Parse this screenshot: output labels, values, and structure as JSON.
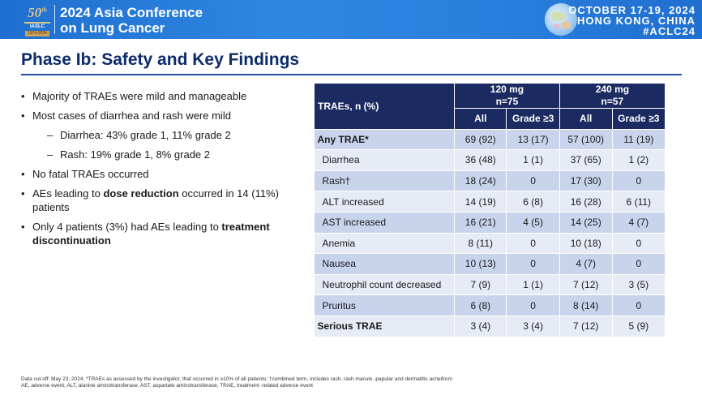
{
  "header": {
    "logo_number": "50",
    "logo_superscript": "th",
    "logo_org": "IASLC",
    "logo_years": "1974-2024",
    "conference_line1": "2024 Asia Conference",
    "conference_line2": "on Lung Cancer",
    "dates": "OCTOBER 17-19, 2024",
    "location": "HONG KONG, CHINA",
    "hashtag": "#ACLC24",
    "brand_color": "#2a7fdc"
  },
  "slide": {
    "title": "Phase Ib: Safety and Key Findings"
  },
  "bullets": {
    "b1": "Majority of TRAEs were mild and manageable",
    "b2": "Most cases of diarrhea and rash were mild",
    "b2_sub1": "Diarrhea: 43% grade 1, 11% grade 2",
    "b2_sub2": "Rash: 19% grade 1, 8% grade 2",
    "b3": "No fatal TRAEs occurred",
    "b4_pre": "AEs leading to ",
    "b4_bold": "dose reduction",
    "b4_post": " occurred in 14 (11%) patients",
    "b5_pre": "Only 4 patients (3%) had AEs leading to ",
    "b5_bold": "treatment discontinuation"
  },
  "table": {
    "header_label": "TRAEs, n (%)",
    "dose1_line1": "120 mg",
    "dose1_line2": "n=75",
    "dose2_line1": "240 mg",
    "dose2_line2": "n=57",
    "col_all": "All",
    "col_grade": "Grade ≥3",
    "header_color": "#1c2a62",
    "rows": [
      {
        "name": "Any TRAE*",
        "a1": "69 (92)",
        "g1": "13 (17)",
        "a2": "57 (100)",
        "g2": "11 (19)"
      },
      {
        "name": "Diarrhea",
        "a1": "36 (48)",
        "g1": "1 (1)",
        "a2": "37 (65)",
        "g2": "1 (2)"
      },
      {
        "name": "Rash†",
        "a1": "18 (24)",
        "g1": "0",
        "a2": "17 (30)",
        "g2": "0"
      },
      {
        "name": "ALT increased",
        "a1": "14 (19)",
        "g1": "6 (8)",
        "a2": "16 (28)",
        "g2": "6 (11)"
      },
      {
        "name": "AST increased",
        "a1": "16 (21)",
        "g1": "4 (5)",
        "a2": "14 (25)",
        "g2": "4 (7)"
      },
      {
        "name": "Anemia",
        "a1": "8 (11)",
        "g1": "0",
        "a2": "10 (18)",
        "g2": "0"
      },
      {
        "name": "Nausea",
        "a1": "10 (13)",
        "g1": "0",
        "a2": "4 (7)",
        "g2": "0"
      },
      {
        "name": "Neutrophil count decreased",
        "a1": "7 (9)",
        "g1": "1 (1)",
        "a2": "7 (12)",
        "g2": "3 (5)"
      },
      {
        "name": "Pruritus",
        "a1": "6 (8)",
        "g1": "0",
        "a2": "8 (14)",
        "g2": "0"
      },
      {
        "name": "Serious TRAE",
        "a1": "3 (4)",
        "g1": "3 (4)",
        "a2": "7 (12)",
        "g2": "5 (9)"
      }
    ]
  },
  "footnote": {
    "line1": "Data cut-off: May 23, 2024. *TRAEs as assessed by the investigator, that occurred in ≥10% of all patients;     †combined term, includes rash, rash maculo  -papular and dermatitis acneiform",
    "line2": "AE, adverse event; ALT, alanine aminotransferase; AST, aspartate aminotransferase; TRAE, treatment      -related adverse event"
  }
}
